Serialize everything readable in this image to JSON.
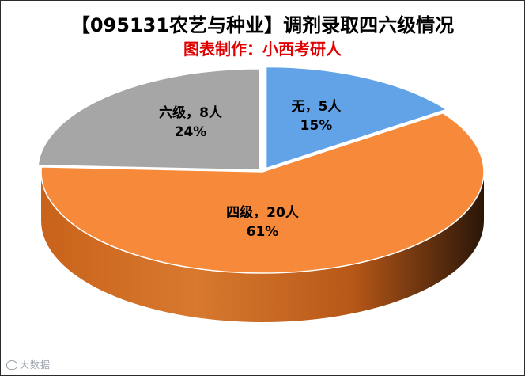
{
  "chart_data": {
    "type": "pie",
    "style": "3d-exploded",
    "title": "【095131农艺与种业】调剂录取四六级情况",
    "subtitle": "图表制作：小西考研人",
    "slices": [
      {
        "label": "无",
        "value": 5,
        "unit": "人",
        "percent": "15%",
        "color": "#62a3e8",
        "dark": "#2f6fbf"
      },
      {
        "label": "四级",
        "value": 20,
        "unit": "人",
        "percent": "61%",
        "color": "#f68a3a",
        "dark": "#c85e10"
      },
      {
        "label": "六级",
        "value": 8,
        "unit": "人",
        "percent": "24%",
        "color": "#a6a6a6",
        "dark": "#6b6b6b"
      }
    ]
  },
  "labels": {
    "none_line1": "无，5人",
    "none_line2": "15%",
    "cet4_line1": "四级，20人",
    "cet4_line2": "61%",
    "cet6_line1": "六级，8人",
    "cet6_line2": "24%"
  },
  "watermark": "大数据"
}
